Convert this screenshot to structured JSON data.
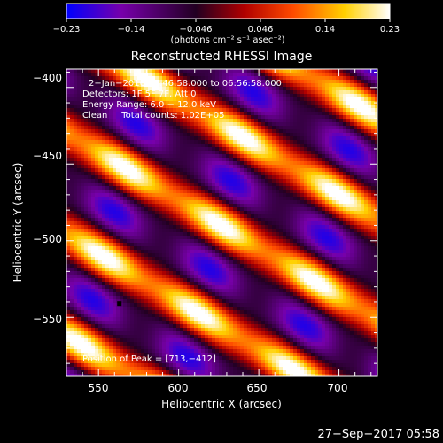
{
  "chart_data": {
    "type": "heatmap",
    "title": "Reconstructed RHESSI Image",
    "xlabel": "Heliocentric X (arcsec)",
    "ylabel": "Heliocentric Y (arcsec)",
    "xlim": [
      530,
      724
    ],
    "ylim": [
      -588,
      -388
    ],
    "x_ticks": [
      550,
      600,
      650,
      700
    ],
    "x_tick_labels": [
      "550",
      "600",
      "650",
      "700"
    ],
    "y_ticks": [
      -400,
      -450,
      -500,
      -550
    ],
    "y_tick_labels": [
      "−400",
      "−450",
      "−500",
      "−550"
    ],
    "colorbar": {
      "range": [
        -0.23,
        0.23
      ],
      "tick_labels": [
        "−0.23",
        "−0.14",
        "−0.046",
        "0.046",
        "0.14",
        "0.23"
      ],
      "unit_label": "(photons cm⁻² s⁻¹ asec⁻²)",
      "colors": [
        "#0000ff",
        "#7700aa",
        "#220022",
        "#b00000",
        "#ff4a00",
        "#ffd000",
        "#ffffff"
      ]
    },
    "annotations": [
      "2−Jan−2016 06:46:58.000 to 06:56:58.000",
      "Detectors: 1F 5F 7F, Att 0",
      "Energy Range: 6.0 − 12.0 keV",
      "Clean     Total counts: 1.02E+05"
    ],
    "peak_label": "Position of Peak = [713,−412]",
    "peak": [
      713,
      -412
    ],
    "image_model": {
      "stripe_angle_deg": -32,
      "stripe_period_arcsec": 56,
      "stripe_offset_arcsec": 0,
      "peak_amplitude": 0.23
    }
  },
  "timestamp": "27−Sep−2017 05:58"
}
